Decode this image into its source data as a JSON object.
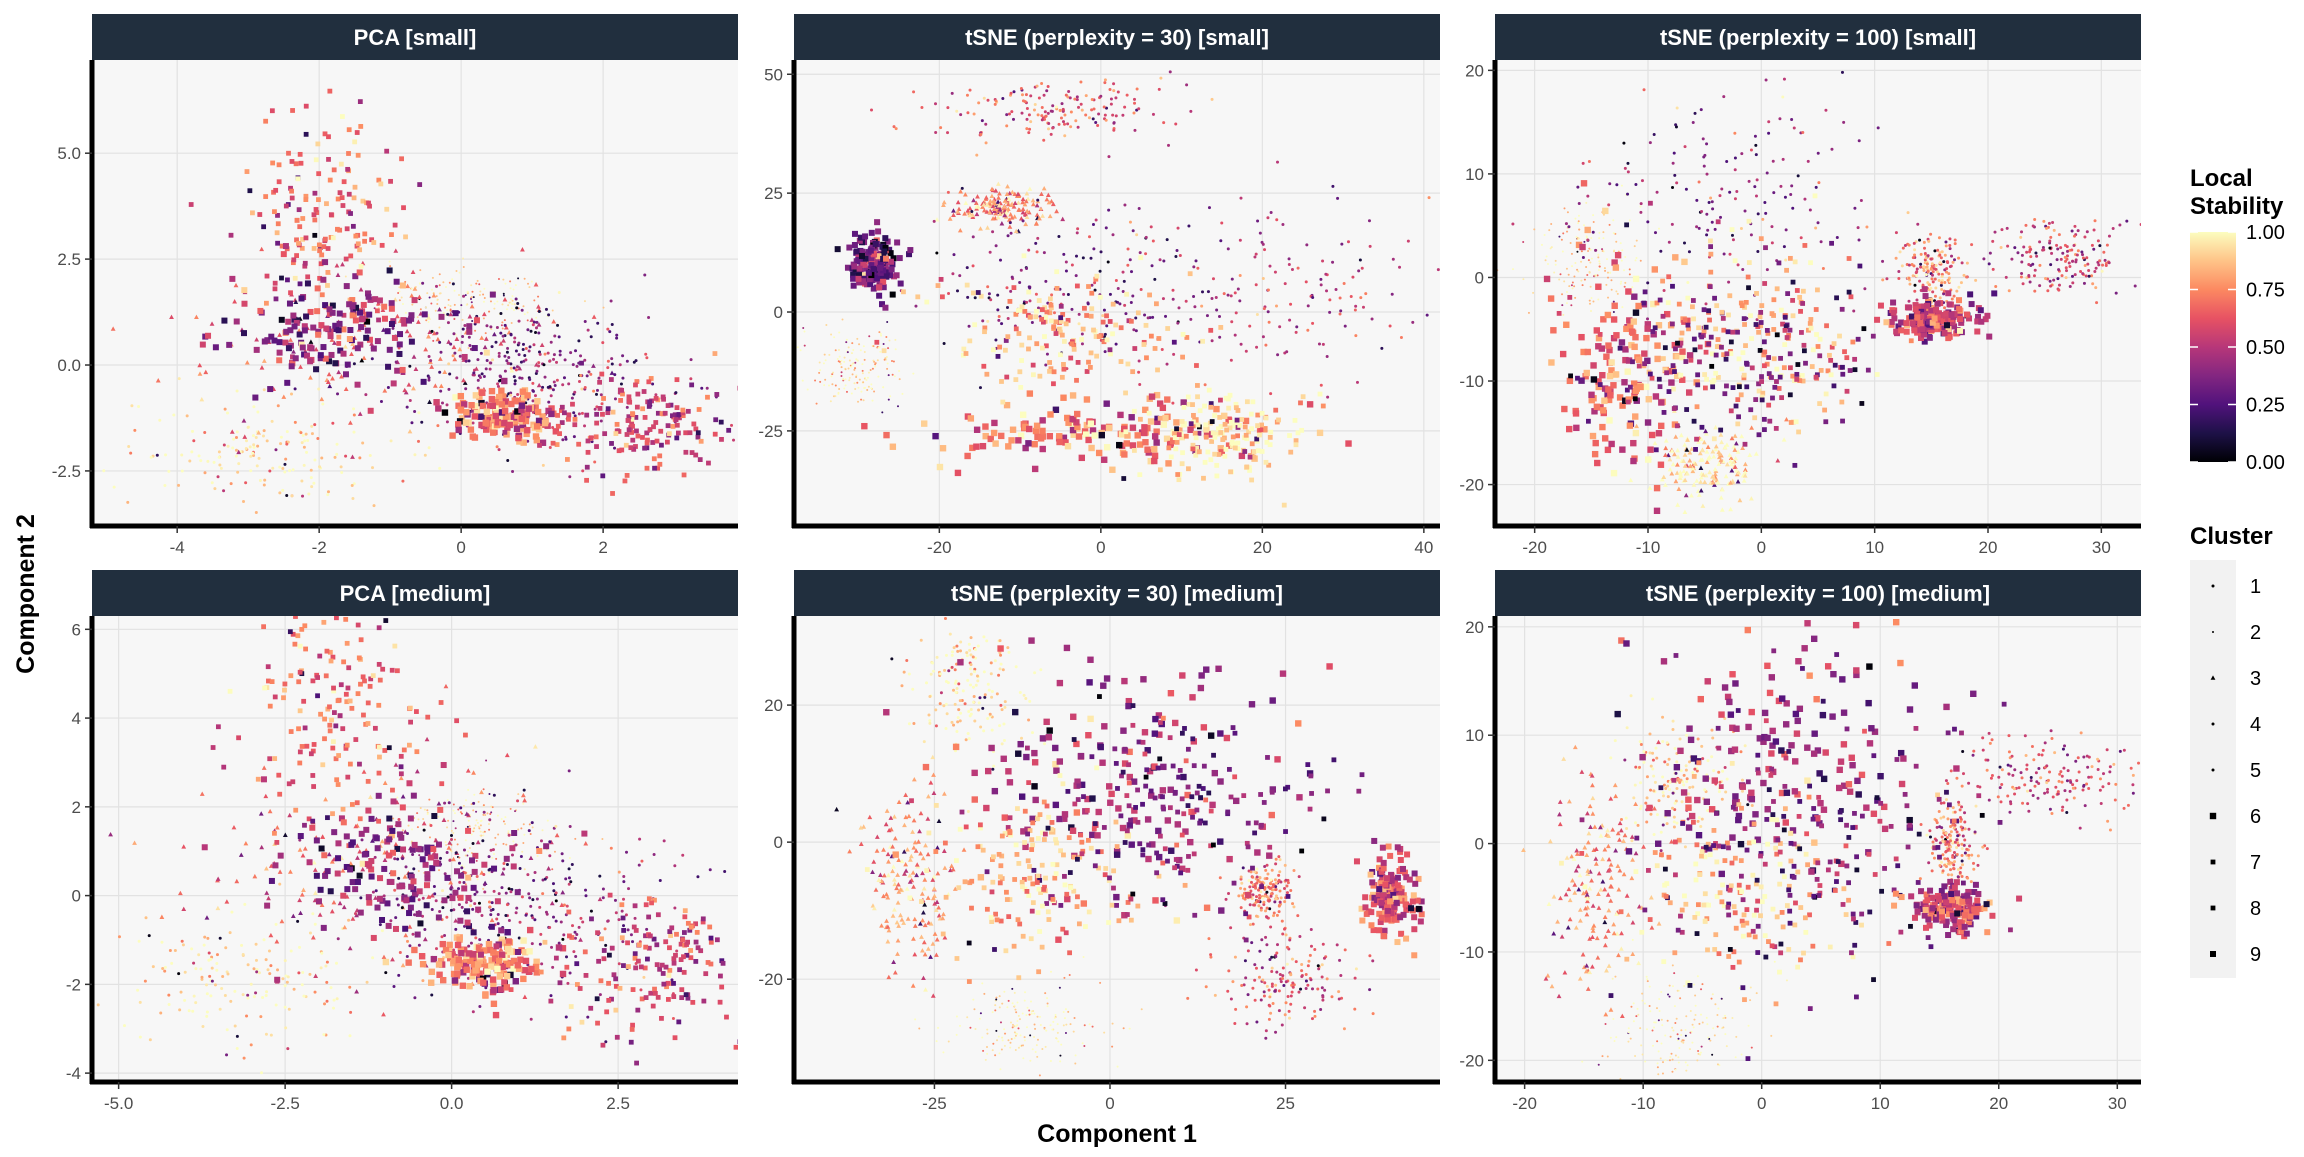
{
  "chart_data": {
    "type": "scatter",
    "xlabel": "Component 1",
    "ylabel": "Component 2",
    "grid": true,
    "legend_placement": "right",
    "colorbar": {
      "title_lines": [
        "Local",
        "Stability"
      ],
      "ticks": [
        0.0,
        0.25,
        0.5,
        0.75,
        1.0
      ],
      "tick_labels": [
        "0.00",
        "0.25",
        "0.50",
        "0.75",
        "1.00"
      ],
      "colors": [
        "#000004",
        "#1d1147",
        "#51127c",
        "#832681",
        "#b73779",
        "#e75263",
        "#fc8961",
        "#fec488",
        "#fcfdbf"
      ]
    },
    "shape_legend": {
      "title": "Cluster",
      "labels": [
        "1",
        "2",
        "3",
        "4",
        "5",
        "6",
        "7",
        "8",
        "9"
      ]
    },
    "panels": [
      {
        "title": "PCA [small]",
        "xlim": [
          -5.2,
          3.9
        ],
        "ylim": [
          -3.8,
          7.2
        ],
        "xticks": [
          -4,
          -2,
          0,
          2
        ],
        "xtick_labels": [
          "-4",
          "-2",
          "0",
          "2"
        ],
        "yticks": [
          -2.5,
          0,
          2.5,
          5
        ],
        "ytick_labels": [
          "-2.5",
          "0.0",
          "2.5",
          "5.0"
        ],
        "clusters": [
          {
            "center": [
              -2.8,
              -2.0
            ],
            "spread": [
              0.9,
              0.6
            ],
            "stability": 0.97
          },
          {
            "center": [
              0.1,
              1.5
            ],
            "spread": [
              0.6,
              0.4
            ],
            "stability": 0.92
          },
          {
            "center": [
              -1.0,
              0.5
            ],
            "spread": [
              1.3,
              1.0
            ],
            "stability": 0.62
          },
          {
            "center": [
              0.6,
              0.2
            ],
            "spread": [
              0.8,
              0.8
            ],
            "stability": 0.3
          },
          {
            "center": [
              1.2,
              -0.4
            ],
            "spread": [
              1.1,
              0.9
            ],
            "stability": 0.45
          },
          {
            "center": [
              0.6,
              -1.2
            ],
            "spread": [
              0.4,
              0.3
            ],
            "stability": 0.72
          },
          {
            "center": [
              2.5,
              -1.4
            ],
            "spread": [
              0.6,
              0.6
            ],
            "stability": 0.58
          },
          {
            "center": [
              -2.0,
              3.5
            ],
            "spread": [
              0.6,
              1.3
            ],
            "stability": 0.68
          },
          {
            "center": [
              -1.6,
              0.8
            ],
            "spread": [
              0.8,
              0.7
            ],
            "stability": 0.4
          }
        ]
      },
      {
        "title": "tSNE (perplexity = 30) [small]",
        "xlim": [
          -38,
          42
        ],
        "ylim": [
          -45,
          53
        ],
        "xticks": [
          -20,
          0,
          20,
          40
        ],
        "xtick_labels": [
          "-20",
          "0",
          "20",
          "40"
        ],
        "yticks": [
          -25,
          0,
          25,
          50
        ],
        "ytick_labels": [
          "-25",
          "0",
          "25",
          "50"
        ],
        "clusters": [
          {
            "center": [
              -6,
              42
            ],
            "spread": [
              8,
              3
            ],
            "stability": 0.6
          },
          {
            "center": [
              -30,
              -12
            ],
            "spread": [
              3,
              4
            ],
            "stability": 0.97
          },
          {
            "center": [
              -12,
              22
            ],
            "spread": [
              3,
              2
            ],
            "stability": 0.74
          },
          {
            "center": [
              -5,
              5
            ],
            "spread": [
              8,
              8
            ],
            "stability": 0.35
          },
          {
            "center": [
              22,
              5
            ],
            "spread": [
              12,
              10
            ],
            "stability": 0.52
          },
          {
            "center": [
              0,
              -25
            ],
            "spread": [
              10,
              3
            ],
            "stability": 0.72
          },
          {
            "center": [
              15,
              -25
            ],
            "spread": [
              5,
              5
            ],
            "stability": 0.93
          },
          {
            "center": [
              -5,
              -5
            ],
            "spread": [
              8,
              6
            ],
            "stability": 0.85
          },
          {
            "center": [
              -28,
              10
            ],
            "spread": [
              1.5,
              3
            ],
            "stability": 0.3
          }
        ]
      },
      {
        "title": "tSNE (perplexity = 100) [small]",
        "xlim": [
          -23.5,
          33.5
        ],
        "ylim": [
          -24,
          21
        ],
        "xticks": [
          -20,
          -10,
          0,
          10,
          20,
          30
        ],
        "xtick_labels": [
          "-20",
          "-10",
          "0",
          "10",
          "20",
          "30"
        ],
        "yticks": [
          -20,
          -10,
          0,
          10,
          20
        ],
        "ytick_labels": [
          "-20",
          "-10",
          "0",
          "10",
          "20"
        ],
        "clusters": [
          {
            "center": [
              26,
              2
            ],
            "spread": [
              3,
              2
            ],
            "stability": 0.55
          },
          {
            "center": [
              -15,
              2
            ],
            "spread": [
              2.5,
              3
            ],
            "stability": 0.96
          },
          {
            "center": [
              -5,
              -18
            ],
            "spread": [
              2.5,
              2
            ],
            "stability": 0.97
          },
          {
            "center": [
              15,
              1
            ],
            "spread": [
              1.5,
              1.5
            ],
            "stability": 0.72
          },
          {
            "center": [
              -3,
              8
            ],
            "spread": [
              7,
              5
            ],
            "stability": 0.4
          },
          {
            "center": [
              -12,
              -8
            ],
            "spread": [
              3,
              5
            ],
            "stability": 0.7
          },
          {
            "center": [
              0,
              -5
            ],
            "spread": [
              5,
              5
            ],
            "stability": 0.85
          },
          {
            "center": [
              -2,
              -8
            ],
            "spread": [
              6,
              4
            ],
            "stability": 0.35
          },
          {
            "center": [
              15,
              -4
            ],
            "spread": [
              2,
              1
            ],
            "stability": 0.55
          }
        ]
      },
      {
        "title": "PCA [medium]",
        "xlim": [
          -5.4,
          4.3
        ],
        "ylim": [
          -4.2,
          6.3
        ],
        "xticks": [
          -5,
          -2.5,
          0,
          2.5
        ],
        "xtick_labels": [
          "-5.0",
          "-2.5",
          "0.0",
          "2.5"
        ],
        "yticks": [
          -4,
          -2,
          0,
          2,
          4,
          6
        ],
        "ytick_labels": [
          "-4",
          "-2",
          "0",
          "2",
          "4",
          "6"
        ],
        "clusters": [
          {
            "center": [
              -3.2,
              -2.0
            ],
            "spread": [
              1.0,
              0.8
            ],
            "stability": 0.97
          },
          {
            "center": [
              0.3,
              1.5
            ],
            "spread": [
              0.6,
              0.5
            ],
            "stability": 0.92
          },
          {
            "center": [
              -1.2,
              0.8
            ],
            "spread": [
              1.4,
              1.2
            ],
            "stability": 0.62
          },
          {
            "center": [
              0.5,
              0.0
            ],
            "spread": [
              0.9,
              0.9
            ],
            "stability": 0.3
          },
          {
            "center": [
              1.5,
              -0.5
            ],
            "spread": [
              1.3,
              1.1
            ],
            "stability": 0.45
          },
          {
            "center": [
              0.5,
              -1.5
            ],
            "spread": [
              0.4,
              0.3
            ],
            "stability": 0.72
          },
          {
            "center": [
              3.0,
              -1.5
            ],
            "spread": [
              0.7,
              0.8
            ],
            "stability": 0.58
          },
          {
            "center": [
              -1.8,
              4.0
            ],
            "spread": [
              0.7,
              1.2
            ],
            "stability": 0.68
          },
          {
            "center": [
              -0.8,
              0.5
            ],
            "spread": [
              1.0,
              0.8
            ],
            "stability": 0.4
          }
        ]
      },
      {
        "title": "tSNE (perplexity = 30) [medium]",
        "xlim": [
          -45,
          47
        ],
        "ylim": [
          -35,
          33
        ],
        "xticks": [
          -25,
          0,
          25
        ],
        "xtick_labels": [
          "-25",
          "0",
          "25"
        ],
        "yticks": [
          -20,
          0,
          20
        ],
        "ytick_labels": [
          "-20",
          "0",
          "20"
        ],
        "clusters": [
          {
            "center": [
              -20,
              22
            ],
            "spread": [
              4,
              5
            ],
            "stability": 0.96
          },
          {
            "center": [
              -12,
              -27
            ],
            "spread": [
              6,
              3
            ],
            "stability": 0.97
          },
          {
            "center": [
              -28,
              -5
            ],
            "spread": [
              3,
              7
            ],
            "stability": 0.75
          },
          {
            "center": [
              22,
              -7
            ],
            "spread": [
              2,
              2
            ],
            "stability": 0.72
          },
          {
            "center": [
              25,
              -20
            ],
            "spread": [
              5,
              4
            ],
            "stability": 0.6
          },
          {
            "center": [
              0,
              10
            ],
            "spread": [
              12,
              10
            ],
            "stability": 0.45
          },
          {
            "center": [
              -10,
              -5
            ],
            "spread": [
              7,
              6
            ],
            "stability": 0.85
          },
          {
            "center": [
              10,
              5
            ],
            "spread": [
              10,
              8
            ],
            "stability": 0.35
          },
          {
            "center": [
              40,
              -8
            ],
            "spread": [
              2,
              3
            ],
            "stability": 0.6
          }
        ]
      },
      {
        "title": "tSNE (perplexity = 100) [medium]",
        "xlim": [
          -22.5,
          32
        ],
        "ylim": [
          -22,
          21
        ],
        "xticks": [
          -20,
          -10,
          0,
          10,
          20,
          30
        ],
        "xtick_labels": [
          "-20",
          "-10",
          "0",
          "10",
          "20",
          "30"
        ],
        "yticks": [
          -20,
          -10,
          0,
          10,
          20
        ],
        "ytick_labels": [
          "-20",
          "-10",
          "0",
          "10",
          "20"
        ],
        "clusters": [
          {
            "center": [
              -7,
              6
            ],
            "spread": [
              2.5,
              3
            ],
            "stability": 0.96
          },
          {
            "center": [
              -7,
              -17
            ],
            "spread": [
              3,
              2.5
            ],
            "stability": 0.97
          },
          {
            "center": [
              -14,
              -4
            ],
            "spread": [
              2,
              5
            ],
            "stability": 0.75
          },
          {
            "center": [
              16,
              0
            ],
            "spread": [
              1,
              2
            ],
            "stability": 0.72
          },
          {
            "center": [
              25,
              6
            ],
            "spread": [
              4,
              2
            ],
            "stability": 0.6
          },
          {
            "center": [
              2,
              8
            ],
            "spread": [
              7,
              6
            ],
            "stability": 0.45
          },
          {
            "center": [
              -2,
              -5
            ],
            "spread": [
              5,
              4
            ],
            "stability": 0.85
          },
          {
            "center": [
              5,
              0
            ],
            "spread": [
              7,
              7
            ],
            "stability": 0.35
          },
          {
            "center": [
              16,
              -6
            ],
            "spread": [
              1.5,
              1
            ],
            "stability": 0.6
          }
        ]
      }
    ]
  }
}
